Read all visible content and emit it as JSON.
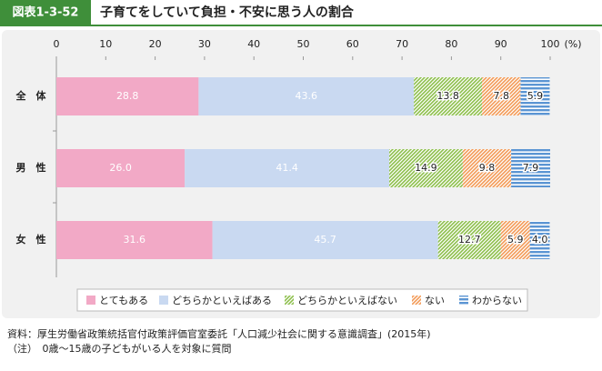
{
  "chart_data": {
    "type": "stacked-bar-horizontal",
    "figure_label": "図表1-3-52",
    "title": "子育てをしていて負担・不安に思う人の割合",
    "categories": [
      "全　体",
      "男　性",
      "女　性"
    ],
    "xlim": [
      0,
      100
    ],
    "xticks": [
      0,
      10,
      20,
      30,
      40,
      50,
      60,
      70,
      80,
      90,
      100
    ],
    "unit_label": "(%)",
    "series": [
      {
        "name": "とてもある",
        "color": "#f2a9c6",
        "values": [
          28.8,
          26.0,
          31.6
        ],
        "value_labels": [
          "28.8",
          "26.0",
          "31.6"
        ]
      },
      {
        "name": "どちらかといえばある",
        "color": "#c9d9f1",
        "values": [
          43.6,
          41.4,
          45.7
        ]
      },
      {
        "name": "どちらかといえばない",
        "color": "#8dbf4c",
        "values": [
          13.8,
          14.9,
          12.7
        ],
        "pattern": "diagonal"
      },
      {
        "name": "ない",
        "color": "#f39a57",
        "values": [
          7.8,
          9.8,
          5.9
        ],
        "pattern": "diagonal"
      },
      {
        "name": "わからない",
        "color": "#5b95d3",
        "values": [
          5.9,
          7.9,
          4.0
        ],
        "value_labels": [
          "5.9",
          "7.9",
          "4.0"
        ],
        "pattern": "horizontal"
      }
    ],
    "source": "資料：厚生労働省政策統括官付政策評価官室委託「人口減少社会に関する意識調査」(2015年)",
    "note": "（注）　0歳～15歳の子どもがいる人を対象に質問"
  }
}
